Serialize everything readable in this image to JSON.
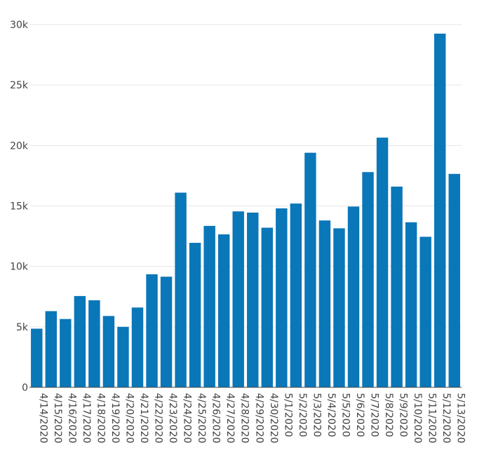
{
  "chart_data": {
    "type": "bar",
    "categories": [
      "4/14/2020",
      "4/15/2020",
      "4/16/2020",
      "4/17/2020",
      "4/18/2020",
      "4/19/2020",
      "4/20/2020",
      "4/21/2020",
      "4/22/2020",
      "4/23/2020",
      "4/24/2020",
      "4/25/2020",
      "4/26/2020",
      "4/27/2020",
      "4/28/2020",
      "4/29/2020",
      "4/30/2020",
      "5/1/2020",
      "5/2/2020",
      "5/3/2020",
      "5/4/2020",
      "5/5/2020",
      "5/6/2020",
      "5/7/2020",
      "5/8/2020",
      "5/9/2020",
      "5/10/2020",
      "5/11/2020",
      "5/12/2020",
      "5/13/2020"
    ],
    "values": [
      4850,
      6300,
      5650,
      7550,
      7200,
      5900,
      5000,
      6600,
      9350,
      9150,
      16100,
      11950,
      13350,
      12650,
      14550,
      14450,
      13200,
      14800,
      15200,
      19400,
      13800,
      13150,
      14950,
      17800,
      20650,
      16600,
      13650,
      12450,
      29250,
      17650
    ],
    "ylim": [
      0,
      30000
    ],
    "yticks": [
      0,
      5000,
      10000,
      15000,
      20000,
      25000,
      30000
    ],
    "ytick_labels": [
      "0",
      "5k",
      "10k",
      "15k",
      "20k",
      "25k",
      "30k"
    ],
    "grid": true,
    "bar_color": "#0a77b8",
    "title": "",
    "xlabel": "",
    "ylabel": ""
  }
}
